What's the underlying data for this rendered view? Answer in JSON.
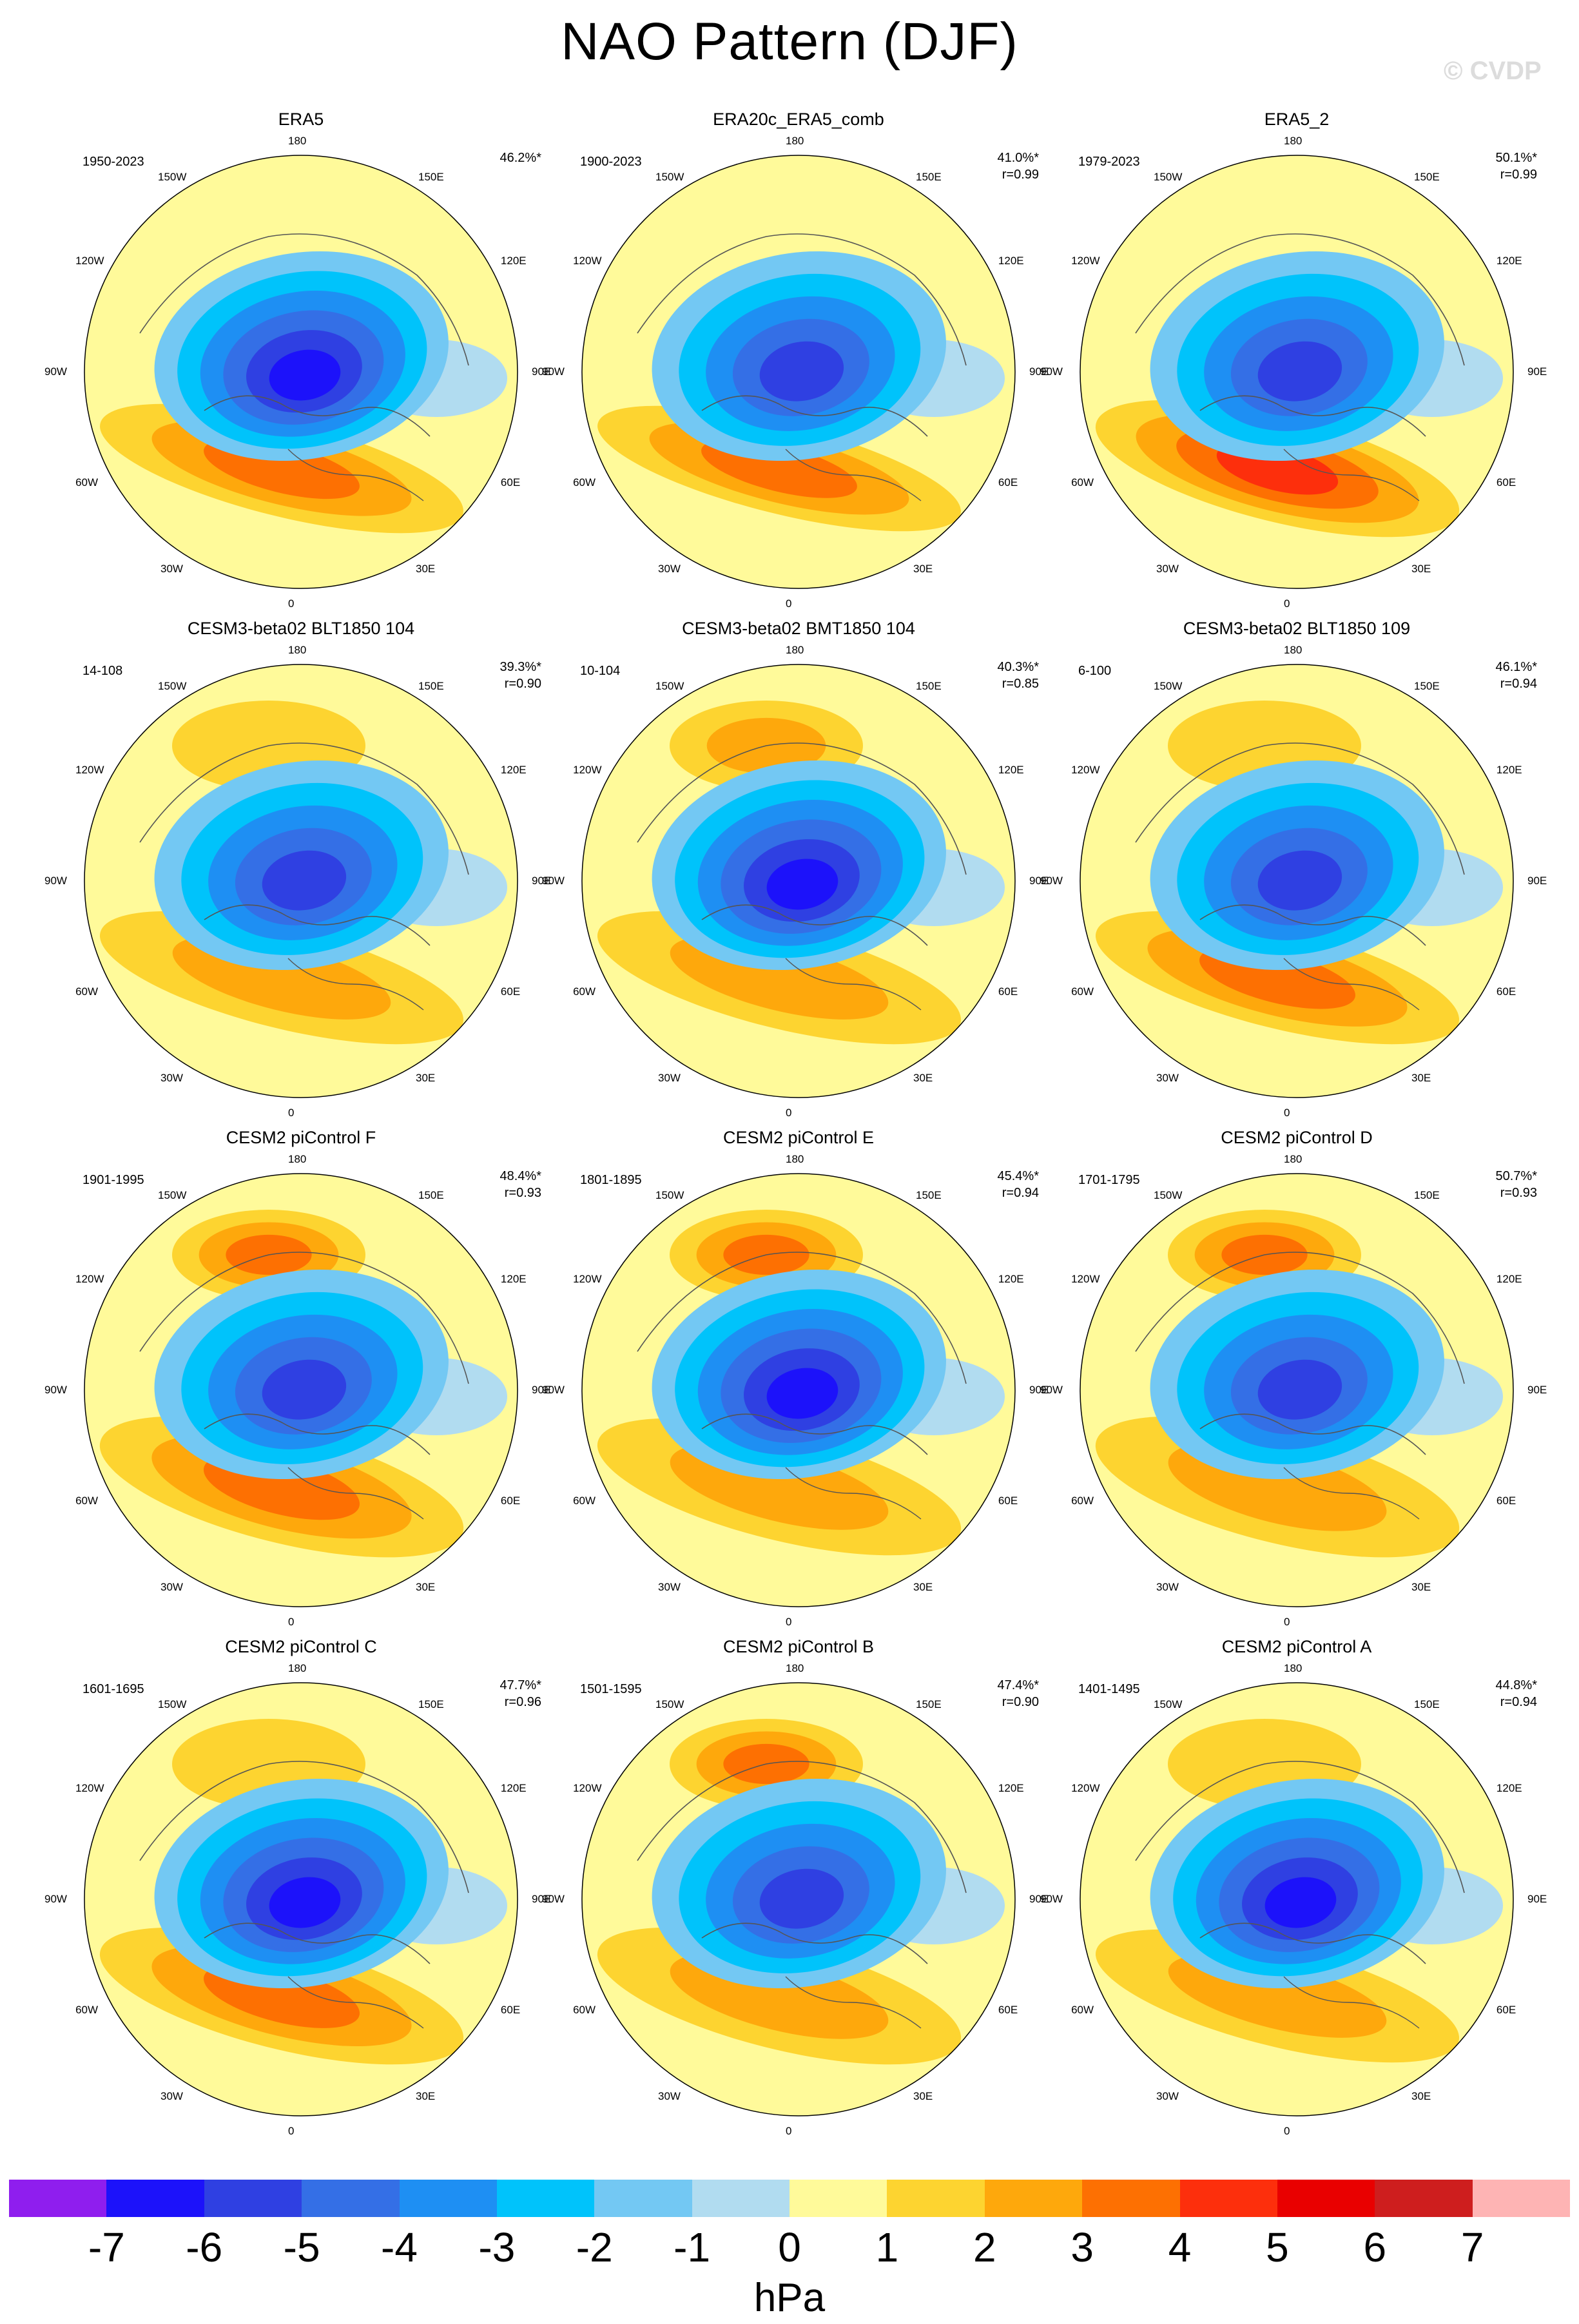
{
  "title": "NAO Pattern (DJF)",
  "watermark": "© CVDP",
  "longitude_labels": {
    "top": "180",
    "bottom": "0",
    "upper_left": "150W",
    "upper_right": "150E",
    "mid_upper_left": "120W",
    "mid_upper_right": "120E",
    "left": "90W",
    "right": "90E",
    "mid_lower_left": "60W",
    "mid_lower_right": "60E",
    "lower_left": "30W",
    "lower_right": "30E"
  },
  "panels": [
    {
      "name": "ERA5",
      "period": "1950-2023",
      "variance": "46.2%*",
      "corr": "",
      "low": -6.0,
      "high": 3.5,
      "pac": 0.4,
      "w": 0.75
    },
    {
      "name": "ERA20c_ERA5_comb",
      "period": "1900-2023",
      "variance": "41.0%*",
      "corr": "r=0.99",
      "low": -5.5,
      "high": 3.0,
      "pac": 0.4,
      "w": 0.7
    },
    {
      "name": "ERA5_2",
      "period": "1979-2023",
      "variance": "50.1%*",
      "corr": "r=0.99",
      "low": -5.5,
      "high": 4.0,
      "pac": 0.5,
      "w": 0.85
    },
    {
      "name": "CESM3-beta02 BLT1850 104",
      "period": "14-108",
      "variance": "39.3%*",
      "corr": "r=0.90",
      "low": -5.5,
      "high": 2.5,
      "pac": 1.5,
      "w": 0.8
    },
    {
      "name": "CESM3-beta02 BMT1850 104",
      "period": "10-104",
      "variance": "40.3%*",
      "corr": "r=0.85",
      "low": -6.0,
      "high": 2.5,
      "pac": 2.0,
      "w": 0.8
    },
    {
      "name": "CESM3-beta02 BLT1850 109",
      "period": "6-100",
      "variance": "46.1%*",
      "corr": "r=0.94",
      "low": -5.5,
      "high": 3.5,
      "pac": 1.0,
      "w": 0.8
    },
    {
      "name": "CESM2 piControl F",
      "period": "1901-1995",
      "variance": "48.4%*",
      "corr": "r=0.93",
      "low": -5.5,
      "high": 3.5,
      "pac": 3.0,
      "w": 0.9
    },
    {
      "name": "CESM2 piControl E",
      "period": "1801-1895",
      "variance": "45.4%*",
      "corr": "r=0.94",
      "low": -6.5,
      "high": 2.5,
      "pac": 3.0,
      "w": 0.85
    },
    {
      "name": "CESM2 piControl D",
      "period": "1701-1795",
      "variance": "50.7%*",
      "corr": "r=0.93",
      "low": -5.5,
      "high": 2.5,
      "pac": 3.0,
      "w": 0.9
    },
    {
      "name": "CESM2 piControl C",
      "period": "1601-1695",
      "variance": "47.7%*",
      "corr": "r=0.96",
      "low": -6.0,
      "high": 3.5,
      "pac": 1.5,
      "w": 0.85
    },
    {
      "name": "CESM2 piControl B",
      "period": "1501-1595",
      "variance": "47.4%*",
      "corr": "r=0.90",
      "low": -5.5,
      "high": 2.5,
      "pac": 3.5,
      "w": 0.85
    },
    {
      "name": "CESM2 piControl A",
      "period": "1401-1495",
      "variance": "44.8%*",
      "corr": "r=0.94",
      "low": -6.0,
      "high": 2.5,
      "pac": 1.5,
      "w": 0.8
    }
  ],
  "colorbar": {
    "units": "hPa",
    "labels": [
      "-7",
      "-6",
      "-5",
      "-4",
      "-3",
      "-2",
      "-1",
      "0",
      "1",
      "2",
      "3",
      "4",
      "5",
      "6",
      "7"
    ],
    "colors": [
      "#8f1eee",
      "#1c12fa",
      "#2f40e2",
      "#346fe6",
      "#1e8ff3",
      "#00c3fb",
      "#73c8f3",
      "#b1dcf0",
      "#fffa9a",
      "#fdd430",
      "#fea80c",
      "#fd7002",
      "#fd2f0c",
      "#e90000",
      "#ce1e1e",
      "#feb4b4"
    ],
    "contour_levels_hPa": [
      -7,
      -6,
      -5,
      -4,
      -3,
      -2,
      -1,
      0,
      1,
      2,
      3,
      4,
      5,
      6,
      7
    ]
  }
}
